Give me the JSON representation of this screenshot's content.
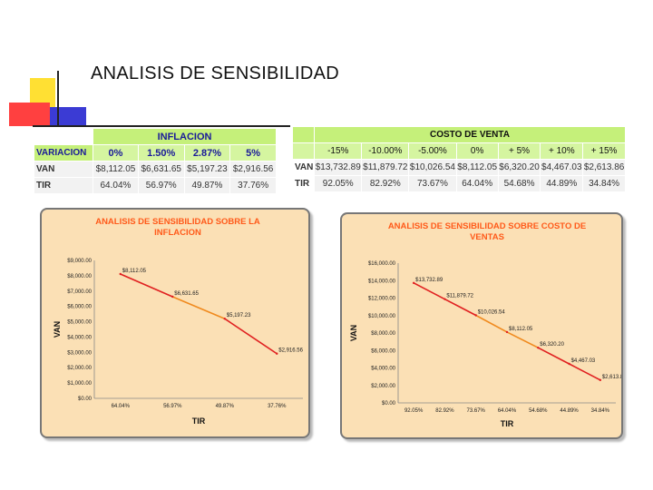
{
  "title": "ANALISIS DE SENSIBILIDAD",
  "table_inflacion": {
    "header": "INFLACION",
    "row_label": "VARIACION",
    "columns": [
      "0%",
      "1.50%",
      "2.87%",
      "5%"
    ],
    "rows": [
      {
        "label": "VAN",
        "values": [
          "$8,112.05",
          "$6,631.65",
          "$5,197.23",
          "$2,916.56"
        ]
      },
      {
        "label": "TIR",
        "values": [
          "64.04%",
          "56.97%",
          "49.87%",
          "37.76%"
        ]
      }
    ]
  },
  "table_costo": {
    "header": "COSTO DE VENTA",
    "columns": [
      "-15%",
      "-10.00%",
      "-5.00%",
      "0%",
      "+ 5%",
      "+ 10%",
      "+ 15%"
    ],
    "rows": [
      {
        "label": "VAN",
        "values": [
          "$13,732.89",
          "$11,879.72",
          "$10,026.54",
          "$8,112.05",
          "$6,320.20",
          "$4,467.03",
          "$2,613.86"
        ]
      },
      {
        "label": "TIR",
        "values": [
          "92.05%",
          "82.92%",
          "73.67%",
          "64.04%",
          "54.68%",
          "44.89%",
          "34.84%"
        ]
      }
    ]
  },
  "chart_data": [
    {
      "type": "line",
      "title_lines": [
        "ANALISIS DE SENSIBILIDAD SOBRE LA",
        "INFLACION"
      ],
      "xlabel": "TIR",
      "ylabel": "VAN",
      "categories": [
        "64.04%",
        "56.97%",
        "49.87%",
        "37.76%"
      ],
      "values": [
        8112.05,
        6631.65,
        5197.23,
        2916.56
      ],
      "data_labels": [
        "$8,112.05",
        "$6,631.65",
        "$5,197.23",
        "$2,916.56"
      ],
      "yticks": [
        "$0.00",
        "$1,000.00",
        "$2,000.00",
        "$3,000.00",
        "$4,000.00",
        "$5,000.00",
        "$6,000.00",
        "$7,000.00",
        "$8,000.00",
        "$9,000.00"
      ],
      "ylim": [
        0,
        9000
      ],
      "line_color": "#e02020"
    },
    {
      "type": "line",
      "title_lines": [
        "ANALISIS DE SENSIBILIDAD SOBRE COSTO DE",
        "VENTAS"
      ],
      "xlabel": "TIR",
      "ylabel": "VAN",
      "categories": [
        "92.05%",
        "82.92%",
        "73.67%",
        "64.04%",
        "54.68%",
        "44.89%",
        "34.84%"
      ],
      "values": [
        13732.89,
        11879.72,
        10026.54,
        8112.05,
        6320.2,
        4467.03,
        2613.86
      ],
      "data_labels": [
        "$13,732.89",
        "$11,879.72",
        "$10,026.54",
        "$8,112.05",
        "$6,320.20",
        "$4,467.03",
        "$2,613.86"
      ],
      "yticks": [
        "$0.00",
        "$2,000.00",
        "$4,000.00",
        "$6,000.00",
        "$8,000.00",
        "$10,000.00",
        "$12,000.00",
        "$14,000.00",
        "$16,000.00"
      ],
      "ylim": [
        0,
        16000
      ],
      "line_color": "#e02020"
    }
  ]
}
